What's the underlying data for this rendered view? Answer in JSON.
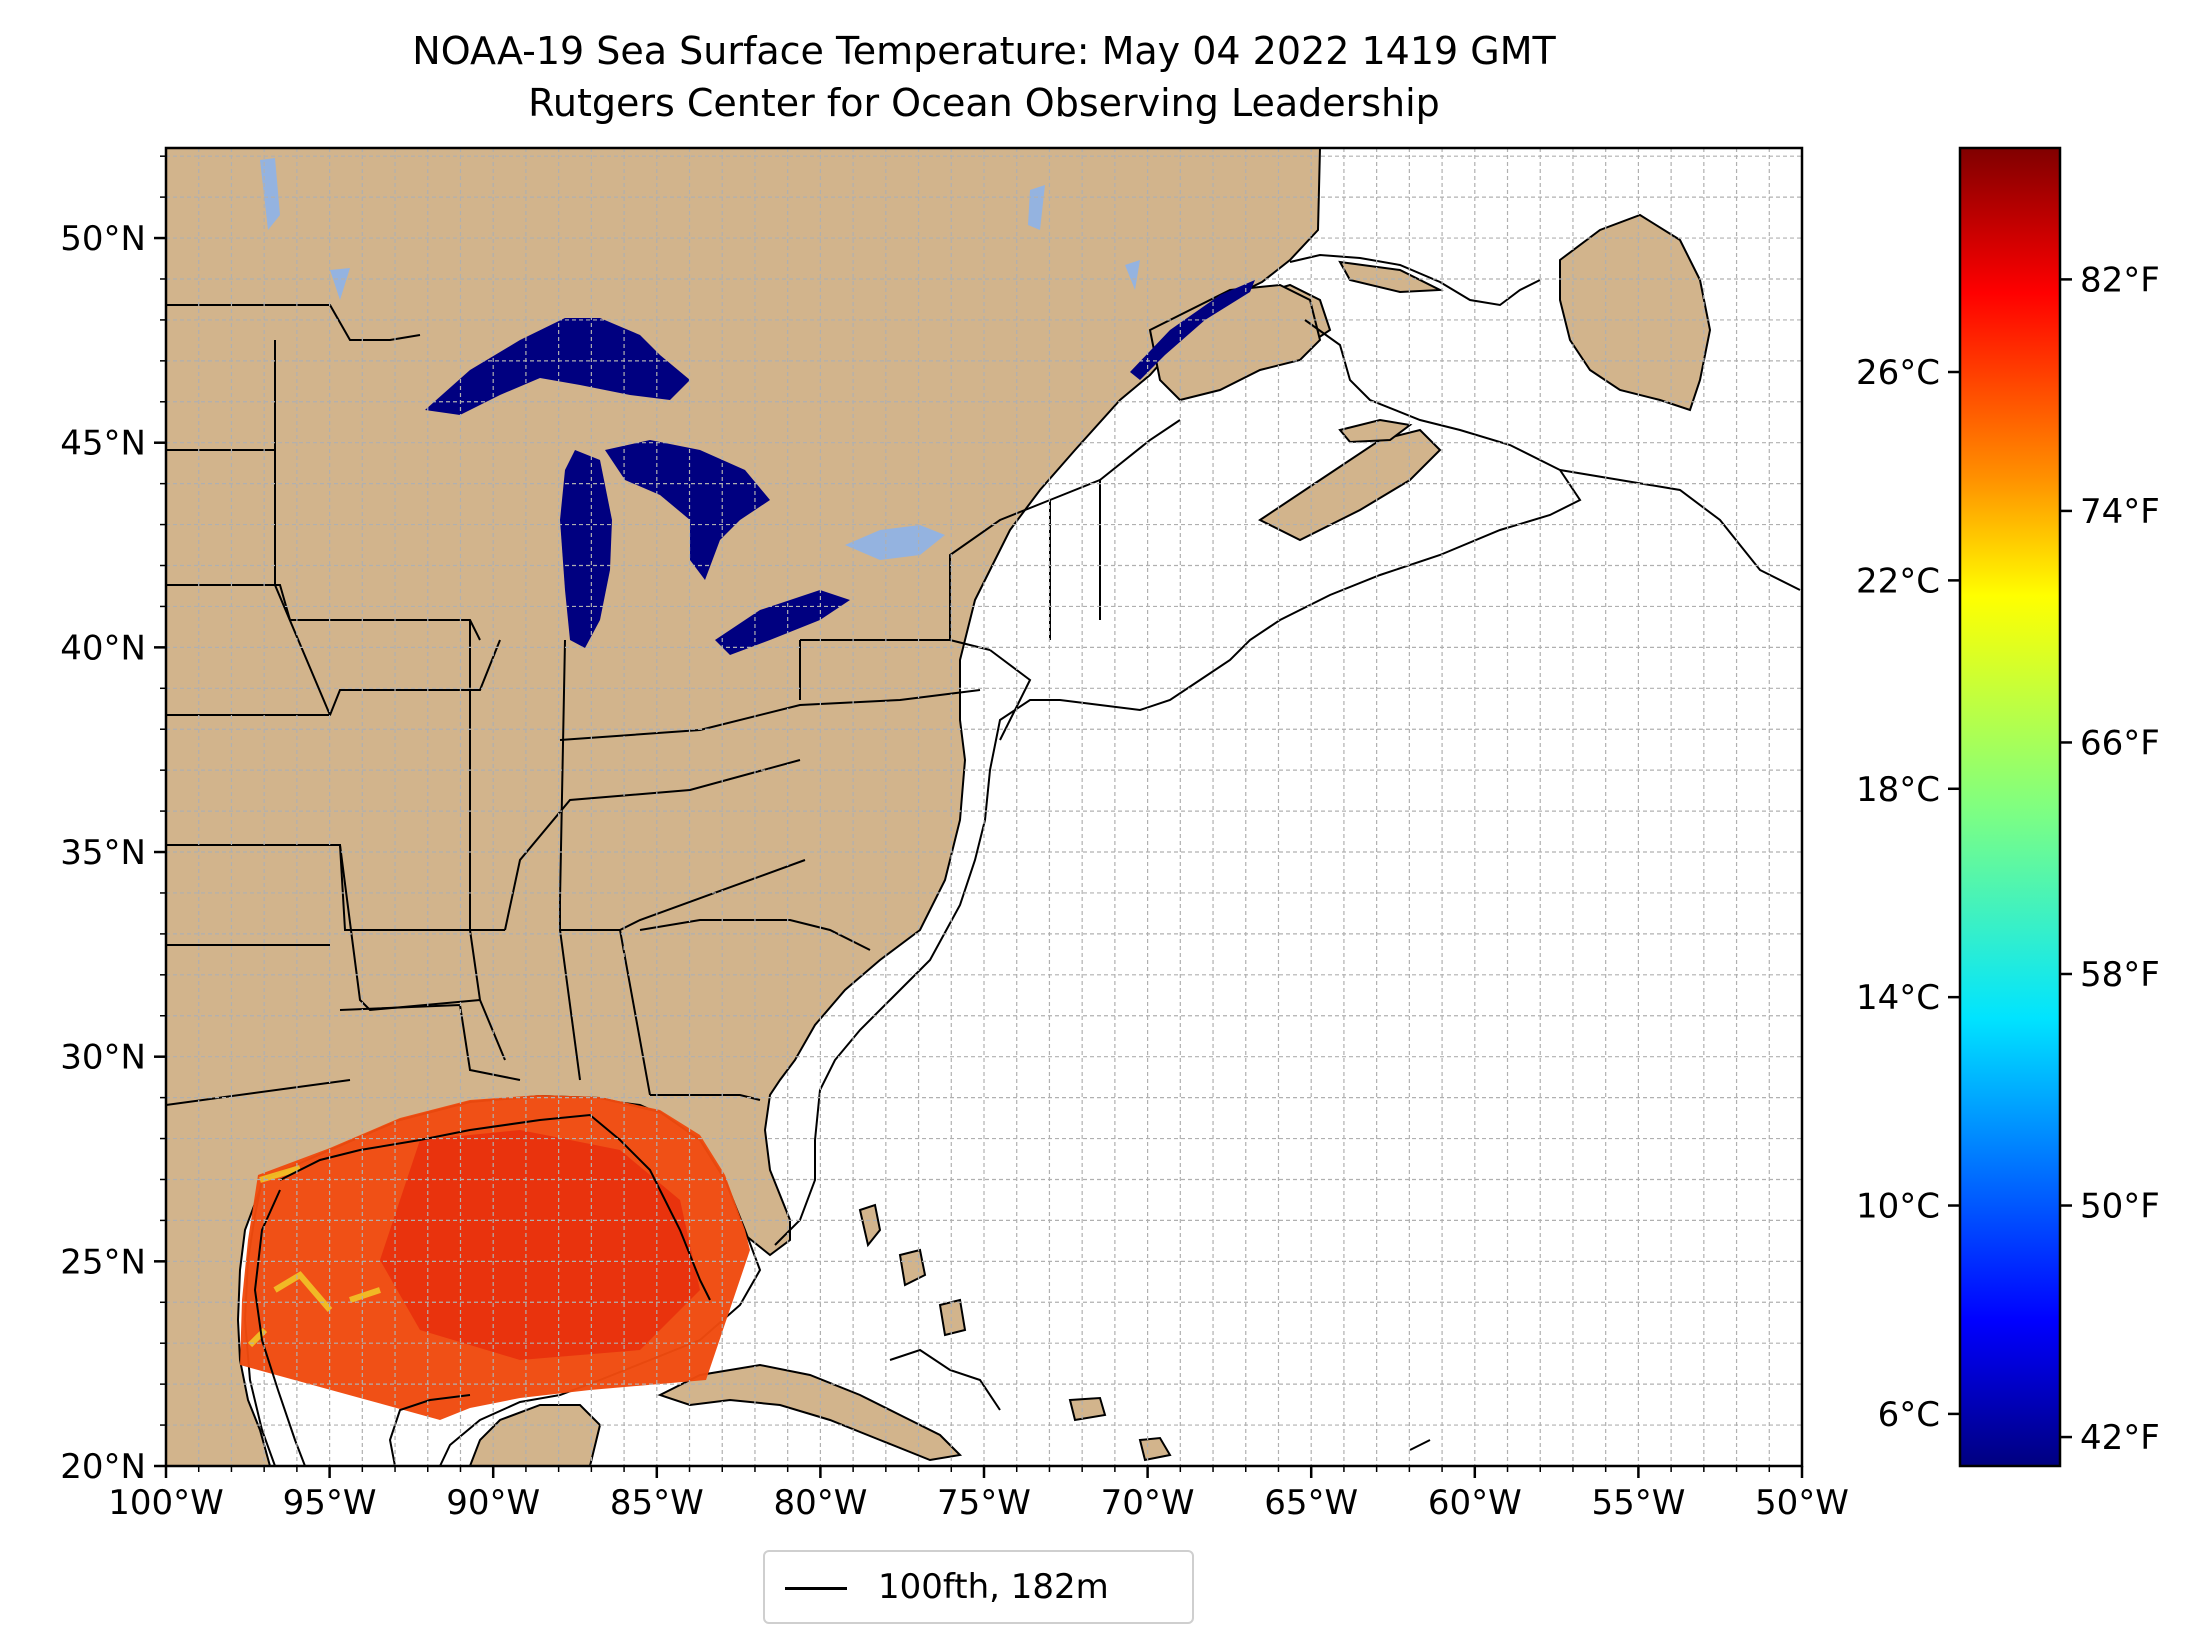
{
  "title": "NOAA-19 Sea Surface Temperature: May 04 2022 1419 GMT",
  "subtitle": "Rutgers Center for Ocean Observing Leadership",
  "map": {
    "projection": "plate-carree",
    "lon_range": [
      -100,
      -50
    ],
    "lat_range": [
      20,
      52.2
    ],
    "gridlines": true,
    "grid_step_deg": 1,
    "land_color": "#d2b48c",
    "lake_color": "#94b3e0",
    "ocean_color": "#ffffff",
    "contour_color": "#000000"
  },
  "axes": {
    "x_ticks": [
      "100°W",
      "95°W",
      "90°W",
      "85°W",
      "80°W",
      "75°W",
      "70°W",
      "65°W",
      "60°W",
      "55°W",
      "50°W"
    ],
    "y_ticks": [
      "20°N",
      "25°N",
      "30°N",
      "35°N",
      "40°N",
      "45°N",
      "50°N"
    ]
  },
  "colorbar": {
    "colormap": "jet",
    "celsius_ticks": [
      "6°C",
      "10°C",
      "14°C",
      "18°C",
      "22°C",
      "26°C"
    ],
    "fahrenheit_ticks": [
      "42°F",
      "50°F",
      "58°F",
      "66°F",
      "74°F",
      "82°F"
    ],
    "colors": [
      "#000080",
      "#0000ff",
      "#0080ff",
      "#00ffff",
      "#80ff80",
      "#ffff00",
      "#ff8000",
      "#ff0000",
      "#800000"
    ]
  },
  "sst_swath": {
    "region": "Gulf of Mexico",
    "dominant_color": "#f04a0e",
    "great_lakes_color": "#000080"
  },
  "legend": {
    "label": "100fth, 182m",
    "line_color": "#000000"
  }
}
